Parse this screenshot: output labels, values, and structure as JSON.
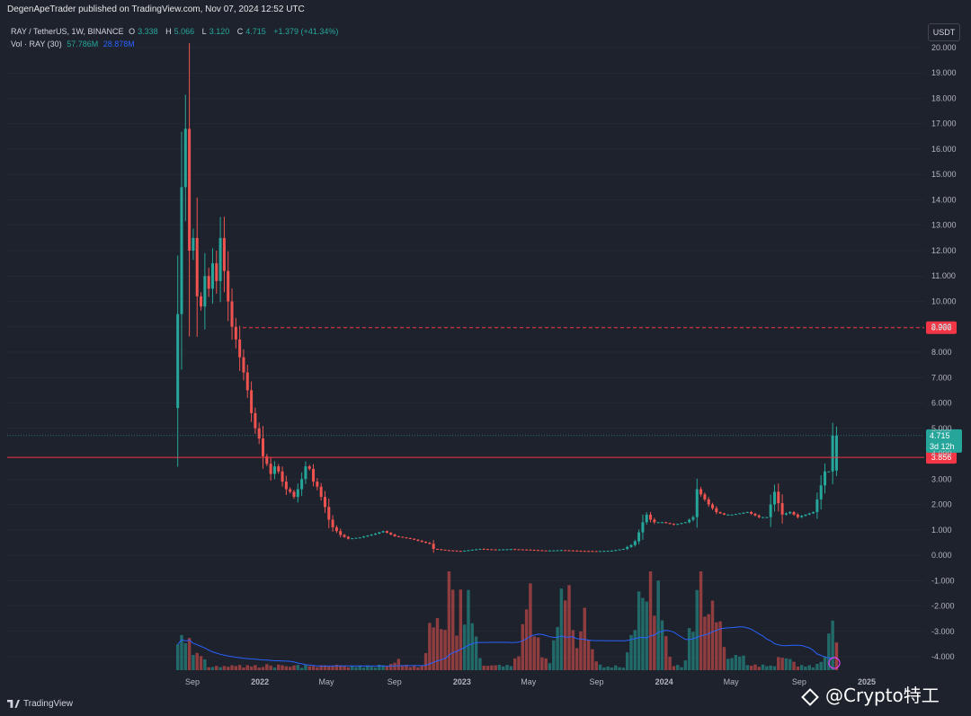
{
  "header": {
    "publisher_line": "DegenApeTrader published on TradingView.com, Nov 07, 2024 12:52 UTC"
  },
  "legend": {
    "symbol": "RAY / TetherUS, 1W, BINANCE",
    "open_label": "O",
    "open": "3.338",
    "high_label": "H",
    "high": "5.066",
    "low_label": "L",
    "low": "3.120",
    "close_label": "C",
    "close": "4.715",
    "change": "+1.379 (+41.34%)",
    "volume_label": "Vol · RAY (30)",
    "volume": "57.786M",
    "volume_ma": "28.878M"
  },
  "currency_button": "USDT",
  "footer": {
    "brand": "TradingView"
  },
  "watermark": "@Crypto特工",
  "colors": {
    "up": "#26a69a",
    "down": "#ef5350",
    "ma": "#2962ff",
    "level": "#f23645",
    "background": "#1e222d",
    "axis_text": "#b2b5be"
  },
  "chart_data": {
    "type": "candlestick",
    "price_axis_ticks": [
      "20.000",
      "19.000",
      "18.000",
      "17.000",
      "16.000",
      "15.000",
      "14.000",
      "13.000",
      "12.000",
      "11.000",
      "10.000",
      "9.000",
      "8.000",
      "7.000",
      "6.000",
      "5.000",
      "4.000",
      "3.000",
      "2.000",
      "1.000",
      "0.000",
      "-1.000",
      "-2.000",
      "-3.000",
      "-4.000"
    ],
    "time_axis_ticks": [
      {
        "label": "Sep",
        "date": "2021-09-01"
      },
      {
        "label": "2022",
        "date": "2022-01-01"
      },
      {
        "label": "May",
        "date": "2022-05-01"
      },
      {
        "label": "Sep",
        "date": "2022-09-01"
      },
      {
        "label": "2023",
        "date": "2023-01-01"
      },
      {
        "label": "May",
        "date": "2023-05-01"
      },
      {
        "label": "Sep",
        "date": "2023-09-01"
      },
      {
        "label": "2024",
        "date": "2024-01-01"
      },
      {
        "label": "May",
        "date": "2024-05-01"
      },
      {
        "label": "Sep",
        "date": "2024-09-01"
      },
      {
        "label": "2025",
        "date": "2025-01-01"
      }
    ],
    "yrange": [
      -4.6,
      20.6
    ],
    "levels": [
      {
        "value": 8.966,
        "label": "8.966",
        "style": "dashed"
      },
      {
        "value": 3.856,
        "label": "3.856",
        "style": "solid"
      }
    ],
    "current_price": {
      "value": 4.715,
      "label": "4.715",
      "countdown": "3d 12h"
    },
    "price_path": [
      [
        "2021-08-02",
        5.8
      ],
      [
        "2021-08-09",
        9.5
      ],
      [
        "2021-08-16",
        14.5
      ],
      [
        "2021-08-23",
        16.8
      ],
      [
        "2021-08-30",
        12.0
      ],
      [
        "2021-09-06",
        12.5
      ],
      [
        "2021-09-13",
        10.2
      ],
      [
        "2021-09-20",
        9.8
      ],
      [
        "2021-09-27",
        11.0
      ],
      [
        "2021-10-04",
        10.5
      ],
      [
        "2021-10-11",
        11.5
      ],
      [
        "2021-10-18",
        10.8
      ],
      [
        "2021-10-25",
        12.5
      ],
      [
        "2021-11-01",
        11.2
      ],
      [
        "2021-11-08",
        10.0
      ],
      [
        "2021-11-15",
        9.0
      ],
      [
        "2021-11-22",
        8.5
      ],
      [
        "2021-11-29",
        7.8
      ],
      [
        "2021-12-06",
        7.2
      ],
      [
        "2021-12-13",
        6.5
      ],
      [
        "2021-12-20",
        5.6
      ],
      [
        "2021-12-27",
        5.0
      ],
      [
        "2022-01-03",
        4.6
      ],
      [
        "2022-01-10",
        3.9
      ],
      [
        "2022-01-17",
        3.6
      ],
      [
        "2022-01-24",
        3.2
      ],
      [
        "2022-01-31",
        3.5
      ],
      [
        "2022-02-07",
        3.3
      ],
      [
        "2022-02-14",
        2.9
      ],
      [
        "2022-02-21",
        2.6
      ],
      [
        "2022-02-28",
        2.5
      ],
      [
        "2022-03-07",
        2.3
      ],
      [
        "2022-03-14",
        2.6
      ],
      [
        "2022-03-21",
        3.0
      ],
      [
        "2022-03-28",
        3.5
      ],
      [
        "2022-04-04",
        3.4
      ],
      [
        "2022-04-11",
        2.9
      ],
      [
        "2022-04-18",
        2.7
      ],
      [
        "2022-04-25",
        2.3
      ],
      [
        "2022-05-02",
        1.9
      ],
      [
        "2022-05-09",
        1.4
      ],
      [
        "2022-05-16",
        1.1
      ],
      [
        "2022-05-23",
        0.95
      ],
      [
        "2022-05-30",
        0.8
      ],
      [
        "2022-06-13",
        0.65
      ],
      [
        "2022-07-04",
        0.7
      ],
      [
        "2022-08-01",
        0.85
      ],
      [
        "2022-08-15",
        0.95
      ],
      [
        "2022-09-05",
        0.75
      ],
      [
        "2022-10-03",
        0.65
      ],
      [
        "2022-11-07",
        0.45
      ],
      [
        "2022-11-14",
        0.25
      ],
      [
        "2022-12-05",
        0.2
      ],
      [
        "2023-01-02",
        0.16
      ],
      [
        "2023-02-06",
        0.25
      ],
      [
        "2023-03-06",
        0.22
      ],
      [
        "2023-04-03",
        0.24
      ],
      [
        "2023-05-01",
        0.22
      ],
      [
        "2023-06-05",
        0.18
      ],
      [
        "2023-07-03",
        0.2
      ],
      [
        "2023-08-07",
        0.17
      ],
      [
        "2023-09-04",
        0.16
      ],
      [
        "2023-10-02",
        0.18
      ],
      [
        "2023-10-23",
        0.25
      ],
      [
        "2023-11-06",
        0.4
      ],
      [
        "2023-11-13",
        0.55
      ],
      [
        "2023-11-20",
        0.9
      ],
      [
        "2023-11-27",
        1.3
      ],
      [
        "2023-12-04",
        1.6
      ],
      [
        "2023-12-11",
        1.4
      ],
      [
        "2023-12-18",
        1.3
      ],
      [
        "2024-01-01",
        1.3
      ],
      [
        "2024-01-22",
        1.2
      ],
      [
        "2024-02-12",
        1.3
      ],
      [
        "2024-02-26",
        1.5
      ],
      [
        "2024-03-04",
        2.6
      ],
      [
        "2024-03-11",
        2.4
      ],
      [
        "2024-03-18",
        2.2
      ],
      [
        "2024-03-25",
        2.0
      ],
      [
        "2024-04-08",
        1.7
      ],
      [
        "2024-04-22",
        1.6
      ],
      [
        "2024-05-06",
        1.6
      ],
      [
        "2024-06-03",
        1.7
      ],
      [
        "2024-06-24",
        1.5
      ],
      [
        "2024-07-08",
        1.5
      ],
      [
        "2024-07-22",
        2.5
      ],
      [
        "2024-08-05",
        1.6
      ],
      [
        "2024-08-19",
        1.7
      ],
      [
        "2024-09-02",
        1.5
      ],
      [
        "2024-09-16",
        1.6
      ],
      [
        "2024-09-30",
        1.7
      ],
      [
        "2024-10-07",
        2.2
      ],
      [
        "2024-10-21",
        3.3
      ],
      [
        "2024-10-28",
        3.3
      ],
      [
        "2024-11-04",
        4.715
      ]
    ],
    "ohlc_last": {
      "date": "2024-11-04",
      "open": 3.338,
      "high": 5.066,
      "low": 3.12,
      "close": 4.715
    },
    "volume_peaks_relative": [
      [
        "2021-08-16",
        0.35
      ],
      [
        "2021-09-01",
        0.25
      ],
      [
        "2022-01-10",
        0.05
      ],
      [
        "2022-06-01",
        0.04
      ],
      [
        "2022-09-01",
        0.09
      ],
      [
        "2022-11-14",
        0.55
      ],
      [
        "2022-12-05",
        0.75
      ],
      [
        "2023-01-02",
        0.72
      ],
      [
        "2023-05-01",
        0.65
      ],
      [
        "2023-07-03",
        0.72
      ],
      [
        "2023-08-07",
        0.45
      ],
      [
        "2023-11-20",
        0.95
      ],
      [
        "2023-12-11",
        0.85
      ],
      [
        "2024-03-04",
        0.9
      ],
      [
        "2024-03-25",
        0.6
      ],
      [
        "2024-05-06",
        0.2
      ],
      [
        "2024-08-05",
        0.15
      ],
      [
        "2024-10-28",
        0.35
      ],
      [
        "2024-11-04",
        0.22
      ]
    ]
  }
}
